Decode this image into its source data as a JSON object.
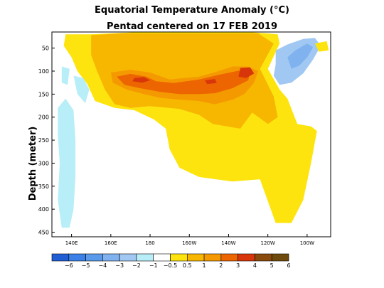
{
  "chart_data": {
    "type": "heatmap",
    "title": "Equatorial Temperature Anomaly (°C)",
    "subtitle": "Pentad centered on 17 FEB 2019",
    "xlabel": "",
    "ylabel": "Depth (meter)",
    "x_tick_labels": [
      "140E",
      "160E",
      "180",
      "160W",
      "140W",
      "120W",
      "100W"
    ],
    "x_tick_lon": [
      140,
      160,
      180,
      200,
      220,
      240,
      260
    ],
    "xlim": [
      130,
      272
    ],
    "y_tick_labels": [
      "50",
      "100",
      "150",
      "200",
      "250",
      "300",
      "350",
      "400",
      "450"
    ],
    "y_ticks": [
      50,
      100,
      150,
      200,
      250,
      300,
      350,
      400,
      450
    ],
    "ylim": [
      15,
      460
    ],
    "y_inverted": true,
    "grid": false,
    "colorbar": {
      "levels": [
        -6,
        -5,
        -4,
        -3,
        -2,
        -1,
        -0.5,
        0.5,
        1,
        2,
        3,
        4,
        5,
        6
      ],
      "tick_labels": [
        "−6",
        "−5",
        "−4",
        "−3",
        "−2",
        "−1",
        "−0.5",
        "0.5",
        "1",
        "2",
        "3",
        "4",
        "5",
        "6"
      ],
      "colors": [
        "#1f5fd3",
        "#3a80e6",
        "#5a9aea",
        "#7fb2ee",
        "#a0c8f2",
        "#b8eef8",
        "#ffffff",
        "#fde40f",
        "#f7b600",
        "#f49a00",
        "#ed6500",
        "#d8360a",
        "#8a4a0c",
        "#6e4a0c"
      ]
    },
    "anomaly_regions": [
      {
        "level": "0.5 to 1",
        "lon": [
          137,
          272
        ],
        "depth": [
          20,
          430
        ],
        "value": 0.7
      },
      {
        "level": "1 to 2",
        "lon": [
          150,
          244
        ],
        "depth": [
          20,
          220
        ],
        "value": 1.5
      },
      {
        "level": "2 to 3",
        "lon": [
          160,
          235
        ],
        "depth": [
          95,
          175
        ],
        "value": 2.5
      },
      {
        "level": "3 to 4",
        "lon": [
          163,
          232
        ],
        "depth": [
          105,
          150
        ],
        "value": 3.5
      },
      {
        "level": "4 to 5",
        "lon": [
          226,
          232
        ],
        "depth": [
          90,
          115
        ],
        "value": 4.2
      },
      {
        "level": "-1 to -2",
        "lon": [
          244,
          266
        ],
        "depth": [
          20,
          130
        ],
        "value": -1.5
      },
      {
        "level": "-2 to -3",
        "lon": [
          250,
          262
        ],
        "depth": [
          35,
          95
        ],
        "value": -2.5
      },
      {
        "level": "-0.5 to -1",
        "lon": [
          133,
          144
        ],
        "depth": [
          90,
          440
        ],
        "value": -0.8
      }
    ]
  }
}
